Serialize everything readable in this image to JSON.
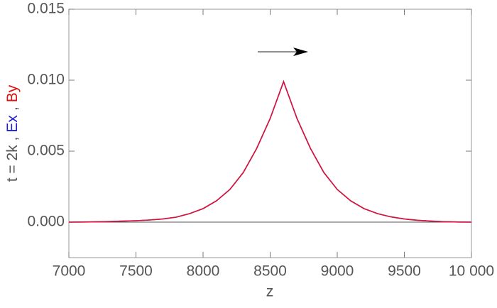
{
  "chart_data": {
    "type": "line",
    "xlabel": "z",
    "ylabel_parts": [
      {
        "text": "t = 2k ,",
        "color": "#555555"
      },
      {
        "text": "Ex",
        "color": "#1f1fd6"
      },
      {
        "text": ",",
        "color": "#555555"
      },
      {
        "text": "By",
        "color": "#dd1111"
      }
    ],
    "x": [
      7000,
      7100,
      7200,
      7300,
      7400,
      7500,
      7600,
      7700,
      7800,
      7900,
      8000,
      8100,
      8200,
      8300,
      8400,
      8500,
      8600,
      8700,
      8800,
      8900,
      9000,
      9100,
      9200,
      9300,
      9400,
      9500,
      9600,
      9700,
      9800,
      9900,
      10000
    ],
    "series": [
      {
        "name": "Ex",
        "color": "#5050c8",
        "values": [
          0,
          1e-05,
          2e-05,
          4e-05,
          7e-05,
          0.0001,
          0.00015,
          0.00022,
          0.00035,
          0.0006,
          0.00095,
          0.0015,
          0.0023,
          0.0035,
          0.0052,
          0.0073,
          0.0099,
          0.0073,
          0.0052,
          0.0035,
          0.0023,
          0.0015,
          0.00095,
          0.0006,
          0.00037,
          0.00022,
          0.00013,
          7e-05,
          3e-05,
          1e-05,
          0
        ]
      },
      {
        "name": "By",
        "color": "#dd1133",
        "values": [
          0,
          1e-05,
          2e-05,
          4e-05,
          7e-05,
          0.0001,
          0.00015,
          0.00022,
          0.00035,
          0.0006,
          0.00095,
          0.0015,
          0.0023,
          0.0035,
          0.0052,
          0.0073,
          0.0099,
          0.0073,
          0.0052,
          0.0035,
          0.0023,
          0.0015,
          0.00095,
          0.0006,
          0.00037,
          0.00022,
          0.00013,
          7e-05,
          3e-05,
          1e-05,
          0
        ]
      }
    ],
    "xlim": [
      7000,
      10000
    ],
    "xticks": [
      7000,
      7500,
      8000,
      8500,
      9000,
      9500,
      {
        "value": 10000,
        "label": "10 000"
      }
    ],
    "ylim": [
      -0.0025,
      0.015
    ],
    "yticks": [
      {
        "value": 0,
        "label": "0.000"
      },
      0.005,
      {
        "value": 0.01,
        "label": "0.010"
      },
      0.015
    ],
    "zero_line": true
  }
}
